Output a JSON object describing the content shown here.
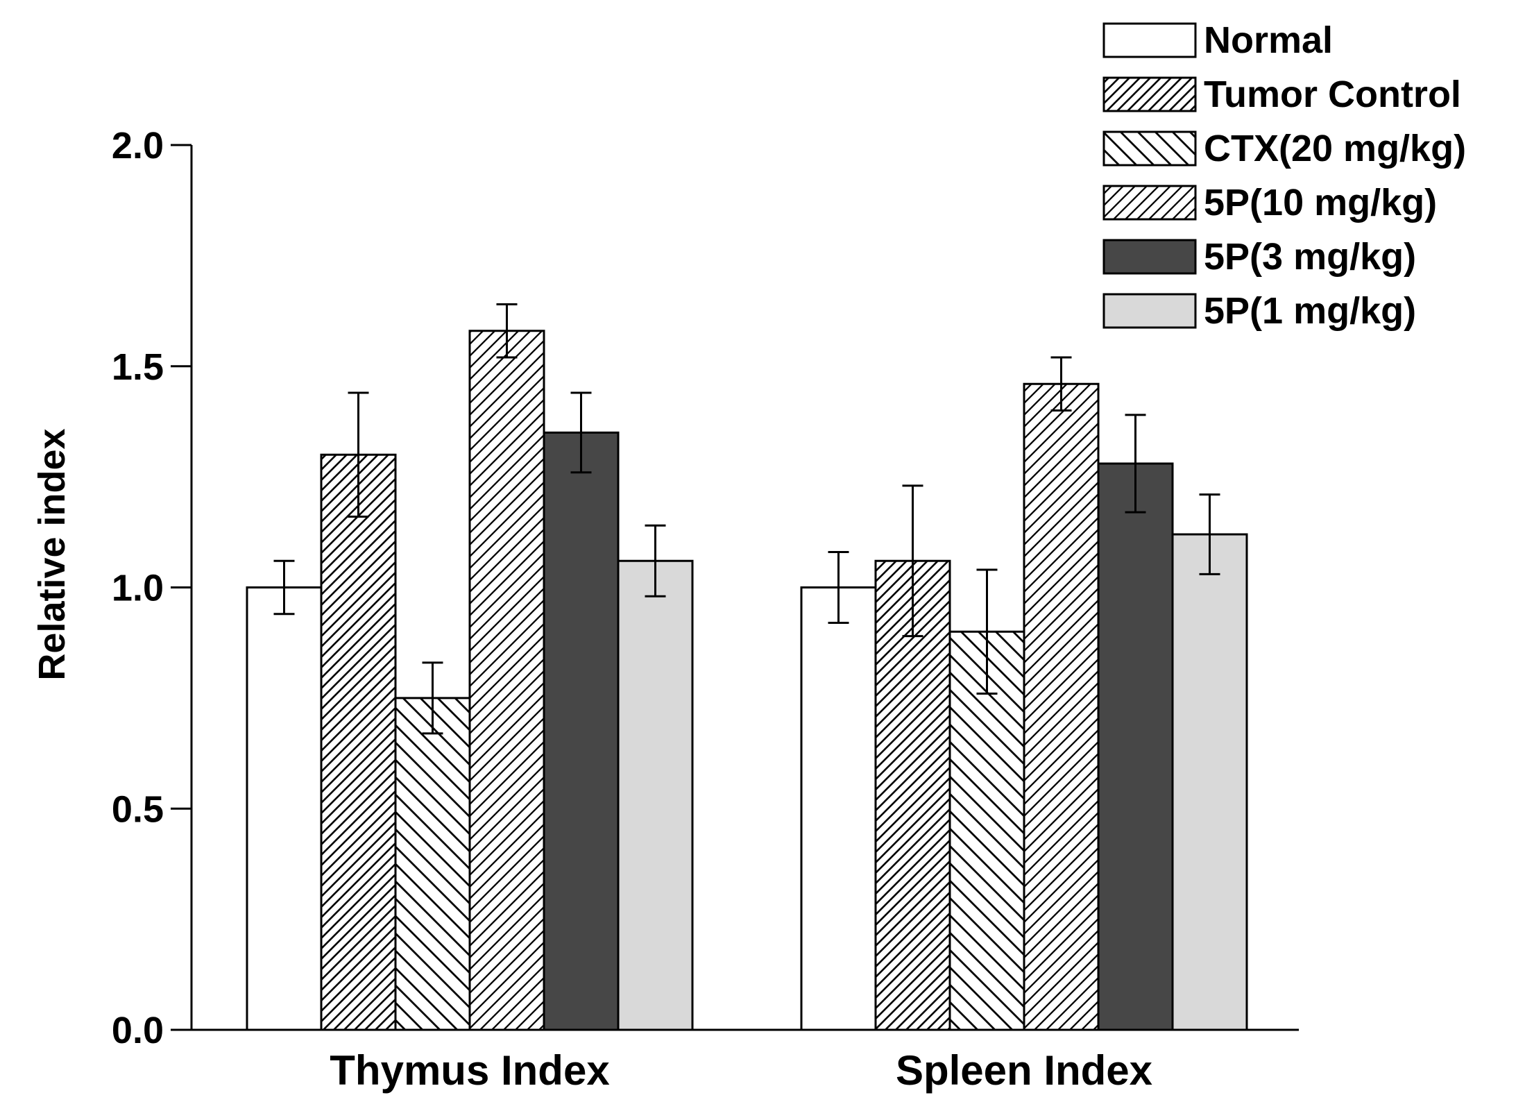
{
  "chart_data": {
    "type": "bar",
    "title": "",
    "xlabel": "",
    "ylabel": "Relative index",
    "ylim": [
      0,
      2.0
    ],
    "yticks": [
      "0.0",
      "0.5",
      "1.0",
      "1.5",
      "2.0"
    ],
    "categories": [
      "Thymus Index",
      "Spleen Index"
    ],
    "legend_position": "top-right",
    "grid": false,
    "series": [
      {
        "name": "Normal",
        "values": [
          1.0,
          1.0
        ],
        "errors": [
          0.06,
          0.08
        ],
        "fill": "white",
        "color": "#ffffff"
      },
      {
        "name": "Tumor Control",
        "values": [
          1.3,
          1.06
        ],
        "errors": [
          0.14,
          0.17
        ],
        "fill": "dense-diagonal",
        "color": "#ffffff"
      },
      {
        "name": "CTX(20 mg/kg)",
        "values": [
          0.75,
          0.9
        ],
        "errors": [
          0.08,
          0.14
        ],
        "fill": "back-diagonal",
        "color": "#ffffff"
      },
      {
        "name": "5P(10 mg/kg)",
        "values": [
          1.58,
          1.46
        ],
        "errors": [
          0.06,
          0.06
        ],
        "fill": "diagonal",
        "color": "#ffffff"
      },
      {
        "name": "5P(3 mg/kg)",
        "values": [
          1.35,
          1.28
        ],
        "errors": [
          0.09,
          0.11
        ],
        "fill": "solid",
        "color": "#474747"
      },
      {
        "name": "5P(1 mg/kg)",
        "values": [
          1.06,
          1.12
        ],
        "errors": [
          0.08,
          0.09
        ],
        "fill": "solid",
        "color": "#d9d9d9"
      }
    ]
  }
}
